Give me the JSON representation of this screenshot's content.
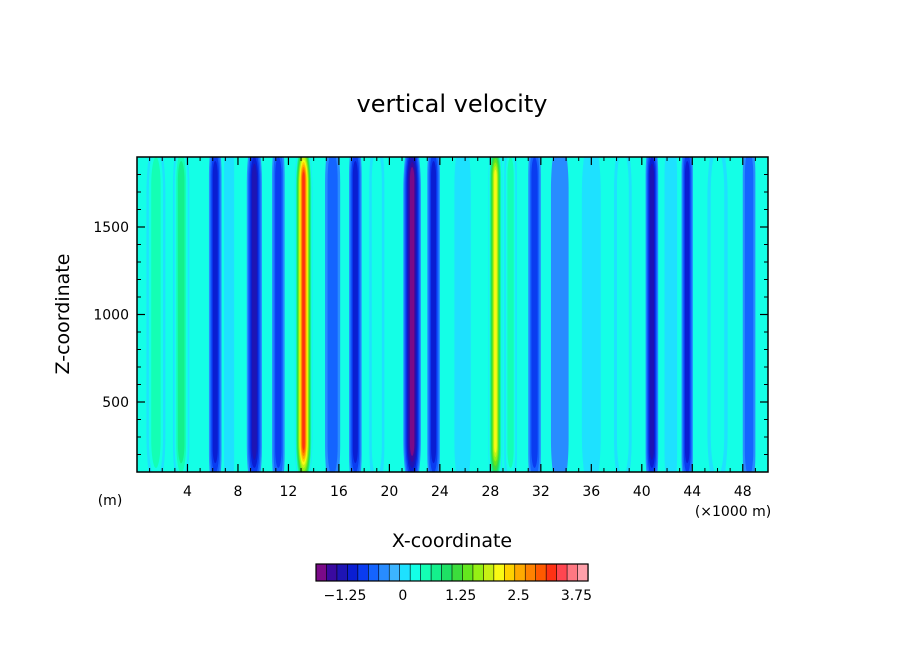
{
  "chart_data": {
    "type": "heatmap",
    "title": "vertical velocity",
    "xlabel": "X-coordinate",
    "ylabel": "Z-coordinate",
    "x_unit_left": "(m)",
    "x_unit_right": "(×1000 m)",
    "xlim": [
      0,
      50
    ],
    "ylim": [
      100,
      1900
    ],
    "x_ticks": [
      4,
      8,
      12,
      16,
      20,
      24,
      28,
      32,
      36,
      40,
      44,
      48
    ],
    "x_tick_labels": [
      "4",
      "8",
      "12",
      "16",
      "20",
      "24",
      "28",
      "32",
      "36",
      "40",
      "44",
      "48"
    ],
    "y_ticks": [
      500,
      1000,
      1500
    ],
    "y_tick_labels": [
      "500",
      "1000",
      "1500"
    ],
    "colorbar": {
      "min": -1.875,
      "max": 4.0,
      "step": 0.25,
      "tick_values": [
        -1.25,
        0,
        1.25,
        2.5,
        3.75
      ],
      "tick_labels": [
        "−1.25",
        "0",
        "1.25",
        "2.5",
        "3.75"
      ],
      "colors": [
        "#7a0a88",
        "#3a0aa0",
        "#1e14b4",
        "#0a1ed2",
        "#0a3cf0",
        "#1464ff",
        "#288cff",
        "#3cb4ff",
        "#1ee1ff",
        "#14ffe6",
        "#14ffb4",
        "#14f08c",
        "#1ee164",
        "#3cdc3c",
        "#64e61e",
        "#96f014",
        "#c8f014",
        "#fafa14",
        "#ffd200",
        "#ffaa00",
        "#ff8200",
        "#ff5a00",
        "#ff3214",
        "#ff4650",
        "#ff7882",
        "#ffa0aa"
      ]
    },
    "description_columns": [
      {
        "x": 1.5,
        "value": 0.75,
        "width": 1.5
      },
      {
        "x": 3.5,
        "value": 1.0,
        "width": 1.3
      },
      {
        "x": 6.2,
        "value": -1.0,
        "width": 1.0
      },
      {
        "x": 7.3,
        "value": 0.25,
        "width": 0.8
      },
      {
        "x": 9.3,
        "value": -1.25,
        "width": 1.2
      },
      {
        "x": 11.2,
        "value": -0.75,
        "width": 1.0
      },
      {
        "x": 13.2,
        "value": 3.75,
        "width": 1.4
      },
      {
        "x": 15.5,
        "value": -0.5,
        "width": 1.2
      },
      {
        "x": 17.3,
        "value": -1.0,
        "width": 1.0
      },
      {
        "x": 19.0,
        "value": 0.5,
        "width": 1.2
      },
      {
        "x": 21.8,
        "value": -1.75,
        "width": 1.4
      },
      {
        "x": 23.5,
        "value": -1.0,
        "width": 1.0
      },
      {
        "x": 25.8,
        "value": 0.25,
        "width": 1.3
      },
      {
        "x": 28.4,
        "value": 2.5,
        "width": 1.1
      },
      {
        "x": 29.6,
        "value": 0.75,
        "width": 1.0
      },
      {
        "x": 31.5,
        "value": -0.75,
        "width": 1.0
      },
      {
        "x": 33.5,
        "value": -0.25,
        "width": 1.4
      },
      {
        "x": 36.0,
        "value": 0.0,
        "width": 1.5
      },
      {
        "x": 38.5,
        "value": 0.5,
        "width": 1.4
      },
      {
        "x": 40.8,
        "value": -1.25,
        "width": 1.0
      },
      {
        "x": 42.3,
        "value": 0.25,
        "width": 1.0
      },
      {
        "x": 43.6,
        "value": -1.0,
        "width": 0.9
      },
      {
        "x": 46.0,
        "value": 0.5,
        "width": 1.6
      },
      {
        "x": 48.5,
        "value": -0.5,
        "width": 1.0
      }
    ]
  }
}
